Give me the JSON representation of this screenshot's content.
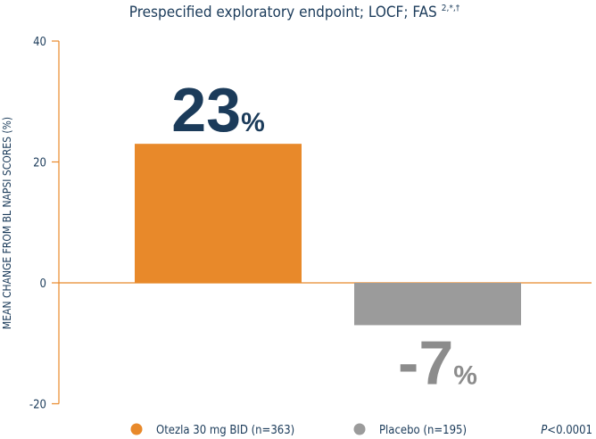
{
  "chart_data": {
    "type": "bar",
    "title": "Prespecified exploratory endpoint; LOCF; FAS",
    "title_superscript": "2,*,†",
    "ylabel": "MEAN CHANGE FROM BL NAPSI SCORES (%)",
    "ylim": [
      -20,
      40
    ],
    "yticks": [
      "40",
      "20",
      "0",
      "-20"
    ],
    "yticks_values": [
      40,
      20,
      0,
      -20
    ],
    "categories": [
      "Otezla 30 mg BID (n=363)",
      "Placebo (n=195)"
    ],
    "values": [
      23,
      -7
    ],
    "data_labels": [
      {
        "num": "23",
        "unit": "%"
      },
      {
        "num": "-7",
        "unit": "%"
      }
    ],
    "colors": [
      "#E8892A",
      "#9B9B9B"
    ],
    "label_colors": [
      "#1B3B5A",
      "#8C8C8C"
    ],
    "legend": [
      "Otezla 30 mg BID (n=363)",
      "Placebo (n=195)"
    ],
    "legend_placement": "bottom",
    "annotation": {
      "p": "P",
      "rest": "<0.0001"
    },
    "grid": false
  }
}
